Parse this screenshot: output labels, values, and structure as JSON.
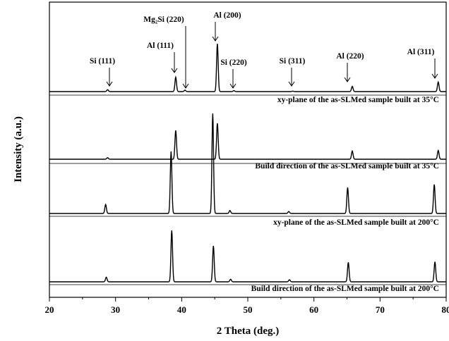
{
  "chart_data": {
    "type": "line",
    "xlabel": "2 Theta (deg.)",
    "ylabel": "Intensity (a.u.)",
    "xlim": [
      20,
      80
    ],
    "x_ticks": [
      20,
      30,
      40,
      50,
      60,
      70,
      80
    ],
    "y_ticks_shown": false,
    "grid": false,
    "legend": "none",
    "series_color": "#000000",
    "peak_annotations": [
      {
        "label": "Si (111)",
        "x": 28.6
      },
      {
        "label": "Al (111)",
        "x": 38.6
      },
      {
        "label": "Mg₂Si (220)",
        "x": 40.2
      },
      {
        "label": "Al (200)",
        "x": 44.9
      },
      {
        "label": "Si (220)",
        "x": 47.4
      },
      {
        "label": "Si (311)",
        "x": 56.3
      },
      {
        "label": "Al (220)",
        "x": 65.3
      },
      {
        "label": "Al (311)",
        "x": 78.4
      }
    ],
    "panels": [
      {
        "caption": "xy-plane of the as-SLMed sample built at 35°C",
        "peaks": [
          {
            "x": 28.8,
            "y": 0.04
          },
          {
            "x": 39.1,
            "y": 0.3
          },
          {
            "x": 40.5,
            "y": 0.03
          },
          {
            "x": 45.4,
            "y": 1.0
          },
          {
            "x": 47.9,
            "y": 0.02
          },
          {
            "x": 56.8,
            "y": 0.01
          },
          {
            "x": 65.8,
            "y": 0.11
          },
          {
            "x": 78.8,
            "y": 0.2
          }
        ]
      },
      {
        "caption": "Build direction of the as-SLMed sample built at 35°C",
        "peaks": [
          {
            "x": 28.8,
            "y": 0.03
          },
          {
            "x": 39.1,
            "y": 0.56
          },
          {
            "x": 45.4,
            "y": 0.7
          },
          {
            "x": 65.8,
            "y": 0.16
          },
          {
            "x": 78.8,
            "y": 0.17
          }
        ]
      },
      {
        "caption": "xy-plane of the as-SLMed sample built at 200°C",
        "peaks": [
          {
            "x": 28.5,
            "y": 0.09
          },
          {
            "x": 38.4,
            "y": 0.62
          },
          {
            "x": 44.7,
            "y": 1.0
          },
          {
            "x": 47.3,
            "y": 0.03
          },
          {
            "x": 56.2,
            "y": 0.02
          },
          {
            "x": 65.1,
            "y": 0.26
          },
          {
            "x": 78.2,
            "y": 0.29
          }
        ]
      },
      {
        "caption": "Build direction of the as-SLMed sample built at 200°C",
        "peaks": [
          {
            "x": 28.6,
            "y": 0.09
          },
          {
            "x": 38.5,
            "y": 1.0
          },
          {
            "x": 44.8,
            "y": 0.7
          },
          {
            "x": 47.4,
            "y": 0.05
          },
          {
            "x": 56.3,
            "y": 0.04
          },
          {
            "x": 65.2,
            "y": 0.38
          },
          {
            "x": 78.3,
            "y": 0.39
          }
        ]
      }
    ]
  }
}
